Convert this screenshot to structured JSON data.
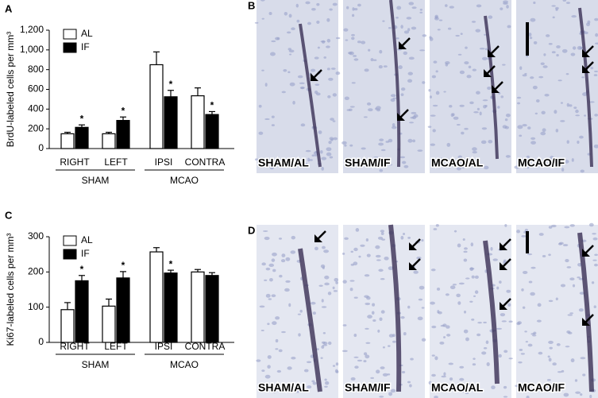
{
  "chart_data": [
    {
      "type": "bar",
      "panel_label": "A",
      "ylabel": "BrdU-labeled cells per mm³",
      "categories": [
        "RIGHT",
        "LEFT",
        "IPSI",
        "CONTRA"
      ],
      "groups": [
        {
          "name": "SHAM",
          "span": 2
        },
        {
          "name": "MCAO",
          "span": 2
        }
      ],
      "series": [
        {
          "name": "AL",
          "color": "#ffffff",
          "values": [
            150,
            150,
            850,
            535
          ],
          "errors": [
            15,
            15,
            130,
            80
          ],
          "significance": [
            null,
            null,
            null,
            null
          ]
        },
        {
          "name": "IF",
          "color": "#000000",
          "values": [
            215,
            285,
            525,
            345
          ],
          "errors": [
            25,
            35,
            65,
            30
          ],
          "significance": [
            "*",
            "*",
            "*",
            "*"
          ]
        }
      ],
      "ylim": [
        0,
        1200
      ],
      "yticks": [
        0,
        200,
        400,
        600,
        800,
        {
          "value": 1000,
          "label": "1,000"
        },
        {
          "value": 1200,
          "label": "1,200"
        }
      ]
    },
    {
      "type": "bar",
      "panel_label": "C",
      "ylabel": "Ki67-labeled cells per mm³",
      "categories": [
        "RIGHT",
        "LEFT",
        "IPSI",
        "CONTRA"
      ],
      "groups": [
        {
          "name": "SHAM",
          "span": 2
        },
        {
          "name": "MCAO",
          "span": 2
        }
      ],
      "series": [
        {
          "name": "AL",
          "color": "#ffffff",
          "values": [
            93,
            103,
            257,
            200
          ],
          "errors": [
            20,
            20,
            12,
            7
          ],
          "significance": [
            null,
            null,
            null,
            null
          ]
        },
        {
          "name": "IF",
          "color": "#000000",
          "values": [
            175,
            183,
            197,
            190
          ],
          "errors": [
            15,
            18,
            8,
            8
          ],
          "significance": [
            "*",
            "*",
            "*",
            null
          ]
        }
      ],
      "ylim": [
        0,
        300
      ],
      "yticks": [
        0,
        100,
        200,
        300
      ]
    }
  ],
  "image_panels": [
    {
      "panel_label": "B",
      "images": [
        "SHAM/AL",
        "SHAM/IF",
        "MCAO/AL",
        "MCAO/IF"
      ]
    },
    {
      "panel_label": "D",
      "images": [
        "SHAM/AL",
        "SHAM/IF",
        "MCAO/AL",
        "MCAO/IF"
      ]
    }
  ]
}
